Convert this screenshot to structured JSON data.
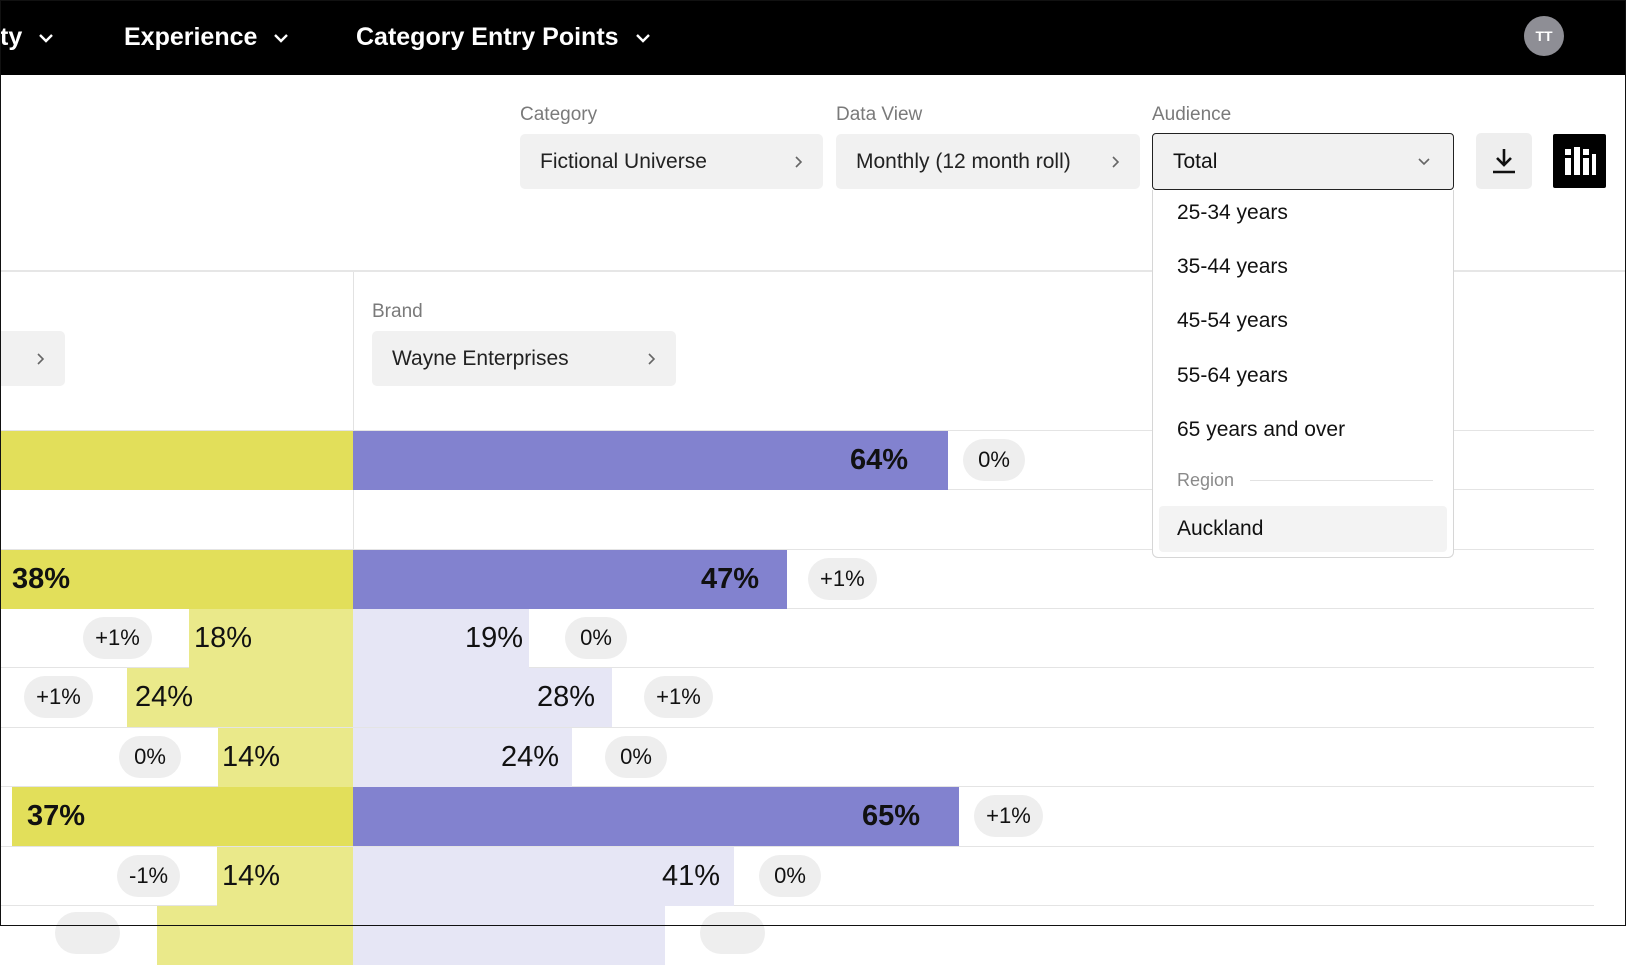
{
  "nav": {
    "items": [
      {
        "label": "ty"
      },
      {
        "label": "Experience"
      },
      {
        "label": "Category Entry Points"
      }
    ],
    "avatar_initials": "TT"
  },
  "filters": {
    "category_label": "Category",
    "category_value": "Fictional Universe",
    "dataview_label": "Data View",
    "dataview_value": "Monthly (12 month roll)",
    "audience_label": "Audience",
    "audience_value": "Total"
  },
  "audience_dropdown": {
    "options": [
      "25-34 years",
      "35-44 years",
      "45-54 years",
      "55-64 years",
      "65 years and over"
    ],
    "group_label": "Region",
    "region_options": [
      "Auckland"
    ]
  },
  "brand": {
    "label": "Brand",
    "value": "Wayne Enterprises"
  },
  "colors": {
    "yellow_strong": "#e2df5a",
    "yellow_light": "#eae98a",
    "purple_strong": "#8282cf",
    "purple_light": "#e6e6f5"
  },
  "rows": [
    {
      "left_value": "",
      "left_change": "",
      "right_value": "64%",
      "right_change": "0%",
      "type": "main"
    },
    {
      "left_value": "38%",
      "left_change": "",
      "right_value": "47%",
      "right_change": "+1%",
      "type": "main"
    },
    {
      "left_value": "18%",
      "left_change": "+1%",
      "right_value": "19%",
      "right_change": "0%",
      "type": "sub"
    },
    {
      "left_value": "24%",
      "left_change": "+1%",
      "right_value": "28%",
      "right_change": "+1%",
      "type": "sub"
    },
    {
      "left_value": "14%",
      "left_change": "0%",
      "right_value": "24%",
      "right_change": "0%",
      "type": "sub"
    },
    {
      "left_value": "37%",
      "left_change": "",
      "right_value": "65%",
      "right_change": "+1%",
      "type": "main"
    },
    {
      "left_value": "14%",
      "left_change": "-1%",
      "right_value": "41%",
      "right_change": "0%",
      "type": "sub"
    }
  ]
}
